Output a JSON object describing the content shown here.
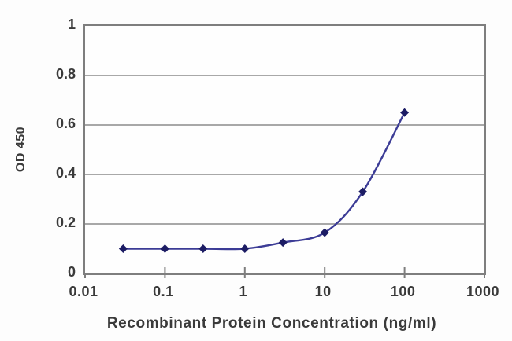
{
  "chart_data": {
    "type": "line",
    "title": "",
    "xlabel": "Recombinant Protein Concentration (ng/ml)",
    "ylabel": "OD 450",
    "x_scale": "log",
    "xlim": [
      0.01,
      1000
    ],
    "ylim": [
      0,
      1
    ],
    "x": [
      0.03,
      0.1,
      0.3,
      1,
      3,
      10,
      30,
      100
    ],
    "y": [
      0.1,
      0.1,
      0.1,
      0.1,
      0.125,
      0.165,
      0.33,
      0.65
    ],
    "x_tick_values": [
      0.01,
      0.1,
      1,
      10,
      100,
      1000
    ],
    "x_tick_labels": [
      "0.01",
      "0.1",
      "1",
      "10",
      "100",
      "1000"
    ],
    "y_tick_values": [
      1,
      0.8,
      0.6,
      0.4,
      0.2,
      0
    ],
    "y_tick_labels": [
      "1",
      "0.8",
      "0.6",
      "0.4",
      "0.2",
      "0"
    ],
    "grid": "horizontal",
    "legend": "none",
    "marker_shape": "diamond",
    "colors": {
      "line": "#3c3c96",
      "marker": "#1c1c64",
      "grid": "#9b9b9b",
      "frame": "#7e7e7e",
      "text": "#3a3a3a",
      "background": "#fdfdfd"
    }
  }
}
